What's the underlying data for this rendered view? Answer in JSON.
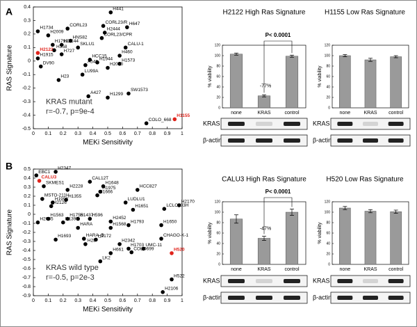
{
  "chart_data": [
    {
      "type": "scatter",
      "panel": "A",
      "xlabel": "MEKi Sensitivity",
      "ylabel": "RAS Signature",
      "annotation": [
        "KRAS mutant",
        "r=-0.7, p=9e-4"
      ],
      "color": "#000000",
      "xlim": [
        0,
        1
      ],
      "ylim": [
        -0.5,
        0.4
      ],
      "xticks": [
        0,
        0.1,
        0.2,
        0.3,
        0.4,
        0.5,
        0.6,
        0.7,
        0.8,
        0.9,
        1
      ],
      "yticks": [
        0.4,
        0.3,
        0.2,
        0.1,
        0,
        -0.1,
        -0.2,
        -0.3,
        -0.4,
        -0.5
      ],
      "points": [
        {
          "label": "H1734",
          "x": 0.03,
          "y": 0.22
        },
        {
          "label": "CORL23",
          "x": 0.23,
          "y": 0.24
        },
        {
          "label": "H2009",
          "x": 0.1,
          "y": 0.19
        },
        {
          "label": "H441",
          "x": 0.52,
          "y": 0.36
        },
        {
          "label": "CORL23/R",
          "x": 0.47,
          "y": 0.26
        },
        {
          "label": "H647",
          "x": 0.63,
          "y": 0.25
        },
        {
          "label": "H2444",
          "x": 0.48,
          "y": 0.21
        },
        {
          "label": "CORL23/CPR",
          "x": 0.46,
          "y": 0.17
        },
        {
          "label": "HNS82",
          "x": 0.25,
          "y": 0.15
        },
        {
          "label": "H1792",
          "x": 0.13,
          "y": 0.12
        },
        {
          "label": "HCC44",
          "x": 0.19,
          "y": 0.12
        },
        {
          "label": "SKLU1",
          "x": 0.3,
          "y": 0.1
        },
        {
          "label": "H358",
          "x": 0.14,
          "y": 0.08
        },
        {
          "label": "H727",
          "x": 0.19,
          "y": 0.05
        },
        {
          "label": "H2122",
          "x": 0.03,
          "y": 0.06,
          "color": "#e0231b"
        },
        {
          "label": "CALU-1",
          "x": 0.62,
          "y": 0.1
        },
        {
          "label": "H460",
          "x": 0.58,
          "y": 0.04
        },
        {
          "label": "H1915",
          "x": 0.03,
          "y": 0.02
        },
        {
          "label": "HCC15",
          "x": 0.38,
          "y": 0.01
        },
        {
          "label": "H1944",
          "x": 0.43,
          "y": -0.01
        },
        {
          "label": "A549",
          "x": 0.35,
          "y": -0.03
        },
        {
          "label": "H1573",
          "x": 0.58,
          "y": -0.02
        },
        {
          "label": "H2030",
          "x": 0.5,
          "y": -0.05
        },
        {
          "label": "DV90",
          "x": 0.05,
          "y": -0.04
        },
        {
          "label": "LU99A",
          "x": 0.33,
          "y": -0.1
        },
        {
          "label": "H23",
          "x": 0.17,
          "y": -0.14
        },
        {
          "label": "A427",
          "x": 0.37,
          "y": -0.26
        },
        {
          "label": "H1299",
          "x": 0.5,
          "y": -0.27
        },
        {
          "label": "SW1573",
          "x": 0.64,
          "y": -0.24
        },
        {
          "label": "COLO_668",
          "x": 0.76,
          "y": -0.46
        },
        {
          "label": "H1155",
          "x": 0.95,
          "y": -0.43,
          "color": "#e0231b"
        }
      ]
    },
    {
      "type": "bar",
      "title": "H2122 High Ras Signature",
      "categories": [
        "none",
        "KRAS",
        "control"
      ],
      "values": [
        103,
        23,
        99
      ],
      "errors": [
        2,
        2,
        2
      ],
      "color": "#9a9a9a",
      "ylabel": "% viability",
      "ylim": [
        0,
        120
      ],
      "yticks": [
        0,
        20,
        40,
        60,
        80,
        100,
        120
      ],
      "annotations": {
        "p_value": "P< 0.0001",
        "change": "-77%"
      },
      "blot_labels": [
        "KRAS",
        "β-actin"
      ]
    },
    {
      "type": "bar",
      "title": "H1155 Low Ras Signature",
      "categories": [
        "none",
        "KRAS",
        "control"
      ],
      "values": [
        100,
        92,
        98
      ],
      "errors": [
        2,
        3,
        2
      ],
      "color": "#9a9a9a",
      "ylabel": "% viability",
      "ylim": [
        0,
        120
      ],
      "yticks": [
        0,
        20,
        40,
        60,
        80,
        100,
        120
      ],
      "blot_labels": [
        "KRAS",
        "β-actin"
      ]
    },
    {
      "type": "scatter",
      "panel": "B",
      "xlabel": "MEKi Sensitivity",
      "ylabel": "RAS Signature",
      "annotation": [
        "KRAS wild type",
        "r=-0.5, p=2e-3"
      ],
      "color": "#000000",
      "xlim": [
        0,
        1
      ],
      "ylim": [
        -0.9,
        0.5
      ],
      "xticks": [
        0,
        0.1,
        0.2,
        0.3,
        0.4,
        0.5,
        0.6,
        0.7,
        0.8,
        0.9,
        1
      ],
      "yticks": [
        0.5,
        0.4,
        0.3,
        0.2,
        0.1,
        0,
        -0.1,
        -0.2,
        -0.3,
        -0.4,
        -0.5,
        -0.6,
        -0.7,
        -0.8,
        -0.9
      ],
      "points": [
        {
          "label": "EBC1",
          "x": 0.02,
          "y": 0.43
        },
        {
          "label": "H2347",
          "x": 0.15,
          "y": 0.47
        },
        {
          "label": "CALU3",
          "x": 0.04,
          "y": 0.37,
          "color": "#e0231b"
        },
        {
          "label": "SKMES1",
          "x": 0.07,
          "y": 0.31
        },
        {
          "label": "CAL12T",
          "x": 0.38,
          "y": 0.36
        },
        {
          "label": "H2228",
          "x": 0.23,
          "y": 0.27
        },
        {
          "label": "H1648",
          "x": 0.47,
          "y": 0.31
        },
        {
          "label": "HCC827",
          "x": 0.7,
          "y": 0.27
        },
        {
          "label": "H1975",
          "x": 0.45,
          "y": 0.25
        },
        {
          "label": "H1666",
          "x": 0.43,
          "y": 0.21
        },
        {
          "label": "MSTO-211H",
          "x": 0.06,
          "y": 0.17
        },
        {
          "label": "H1993",
          "x": 0.13,
          "y": 0.13
        },
        {
          "label": "H1355",
          "x": 0.22,
          "y": 0.16
        },
        {
          "label": "H2126",
          "x": 0.12,
          "y": 0.09
        },
        {
          "label": "LUDLU1",
          "x": 0.62,
          "y": 0.13
        },
        {
          "label": "H1651",
          "x": 0.67,
          "y": 0.05
        },
        {
          "label": "LCLC103H",
          "x": 0.88,
          "y": 0.06
        },
        {
          "label": "H2170",
          "x": 0.98,
          "y": 0.1
        },
        {
          "label": "H1563",
          "x": 0.1,
          "y": -0.05
        },
        {
          "label": "H2085",
          "x": 0.03,
          "y": -0.09
        },
        {
          "label": "H1395",
          "x": 0.2,
          "y": -0.09
        },
        {
          "label": "H1755",
          "x": 0.23,
          "y": -0.05
        },
        {
          "label": "H1437",
          "x": 0.3,
          "y": -0.05
        },
        {
          "label": "H596",
          "x": 0.38,
          "y": -0.05
        },
        {
          "label": "H2452",
          "x": 0.52,
          "y": -0.08
        },
        {
          "label": "H1793",
          "x": 0.64,
          "y": -0.12
        },
        {
          "label": "H1650",
          "x": 0.86,
          "y": -0.12
        },
        {
          "label": "HARA",
          "x": 0.3,
          "y": -0.15
        },
        {
          "label": "H1568",
          "x": 0.52,
          "y": -0.15
        },
        {
          "label": "H1693",
          "x": 0.15,
          "y": -0.28
        },
        {
          "label": "HARA_B",
          "x": 0.34,
          "y": -0.27
        },
        {
          "label": "H2172",
          "x": 0.42,
          "y": -0.28
        },
        {
          "label": "H28",
          "x": 0.35,
          "y": -0.33
        },
        {
          "label": "H2342",
          "x": 0.58,
          "y": -0.33
        },
        {
          "label": "CHAGO-K-1",
          "x": 0.86,
          "y": -0.27
        },
        {
          "label": "H1703",
          "x": 0.64,
          "y": -0.38
        },
        {
          "label": "UMC-11",
          "x": 0.74,
          "y": -0.38
        },
        {
          "label": "H661",
          "x": 0.52,
          "y": -0.43
        },
        {
          "label": "COLO699",
          "x": 0.66,
          "y": -0.42
        },
        {
          "label": "LK2",
          "x": 0.45,
          "y": -0.52
        },
        {
          "label": "H520",
          "x": 0.93,
          "y": -0.43,
          "color": "#e0231b"
        },
        {
          "label": "H522",
          "x": 0.93,
          "y": -0.72
        },
        {
          "label": "H2106",
          "x": 0.87,
          "y": -0.86
        }
      ]
    },
    {
      "type": "bar",
      "title": "CALU3 High Ras Signature",
      "categories": [
        "none",
        "KRAS",
        "control"
      ],
      "values": [
        87,
        50,
        100
      ],
      "errors": [
        8,
        4,
        6
      ],
      "color": "#9a9a9a",
      "ylabel": "% viability",
      "ylim": [
        0,
        120
      ],
      "yticks": [
        0,
        20,
        40,
        60,
        80,
        100,
        120
      ],
      "annotations": {
        "p_value": "P< 0.0001",
        "change": "-47%"
      },
      "blot_labels": [
        "KRAS",
        "β-actin"
      ]
    },
    {
      "type": "bar",
      "title": "H520 Low Ras Signature",
      "categories": [
        "none",
        "KRAS",
        "control"
      ],
      "values": [
        108,
        102,
        101
      ],
      "errors": [
        3,
        3,
        3
      ],
      "color": "#9a9a9a",
      "ylabel": "% viability",
      "ylim": [
        0,
        120
      ],
      "yticks": [
        0,
        20,
        40,
        60,
        80,
        100,
        120
      ],
      "blot_labels": [
        "KRAS",
        "β-actin"
      ]
    }
  ]
}
